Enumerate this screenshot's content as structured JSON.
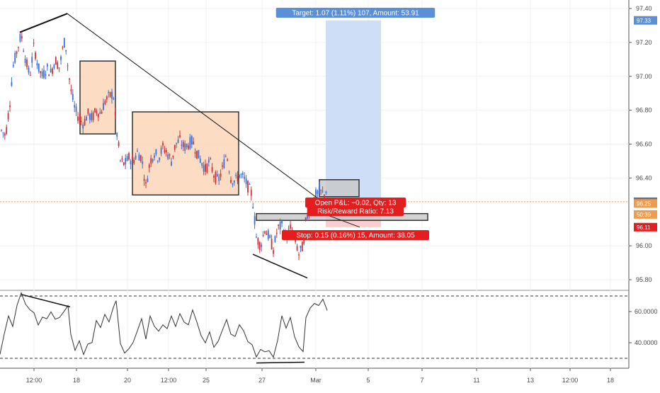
{
  "chart_data": [
    {
      "type": "candlestick",
      "yticks": [
        "97.40",
        "97.20",
        "97.00",
        "96.80",
        "96.60",
        "96.40",
        "96.00",
        "95.80"
      ],
      "ylim": [
        95.72,
        97.44
      ],
      "xticks": [
        "12:00",
        "18",
        "20",
        "12:00",
        "25",
        "27",
        "Mar",
        "5",
        "7",
        "11",
        "13",
        "12:00",
        "18"
      ],
      "price_tags": {
        "target": "97.33",
        "current": "96.26",
        "entry": "96.25",
        "countdown": "50:39",
        "stop": "96.11"
      },
      "annotations": {
        "target_label": "Target: 1.07 (1.11%) 107, Amount: 53.91",
        "pnl_label": "Open P&L: −0.02, Qty: 13",
        "rr_label": "Risk/Reward Ratio: 7.13",
        "stop_label": "Stop: 0.15 (0.16%) 15, Amount: 38.05"
      },
      "colors": {
        "up": "#3d6fd8",
        "down": "#c8333a",
        "target_zone": "#c5d8f5",
        "stop_zone": "#f7c9c9",
        "box_fill": "#fbd5b5",
        "tag_blue": "#5b8fd8",
        "tag_red": "#e41e1e",
        "tag_orange": "#f29b4c"
      }
    },
    {
      "type": "line",
      "indicator": "RSI",
      "yticks": [
        "60.0000",
        "40.0000"
      ],
      "ylim": [
        27,
        73
      ],
      "levels": [
        70,
        30
      ]
    }
  ]
}
